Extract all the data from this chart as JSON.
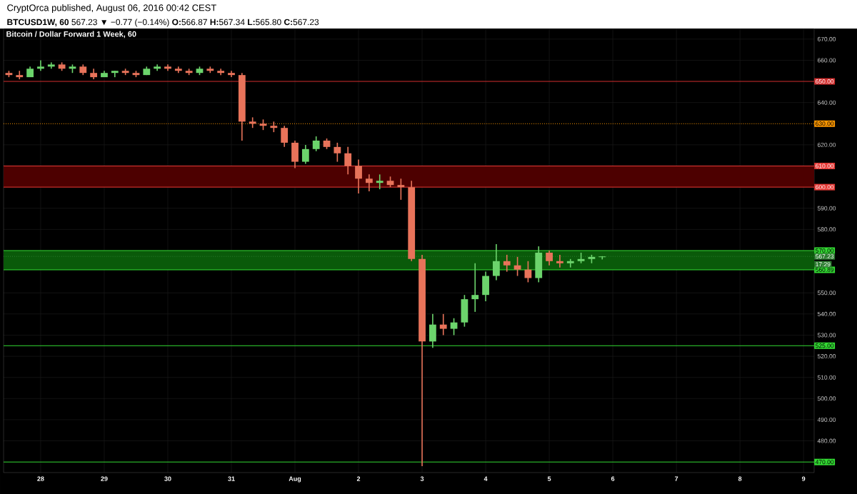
{
  "chart_data": {
    "type": "candlestick",
    "title": "Bitcoin / Dollar Forward 1 Week, 60",
    "subtitle": "**BTCUSD1W, 60** 567.23 ▼ −0.77 (−0.14%) **O:**566.87 **H:**567.34 **L:**565.80 **C:**567.23",
    "annotations": [
      "CryptOrca published, August 06, 2016 00:42 CEST",
      "17:29"
    ],
    "x": [
      "2016-07-27T12:00",
      "2016-07-27T16:00",
      "2016-07-27T20:00",
      "2016-07-28T00:00",
      "2016-07-28T04:00",
      "2016-07-28T08:00",
      "2016-07-28T12:00",
      "2016-07-28T16:00",
      "2016-07-28T20:00",
      "2016-07-29T00:00",
      "2016-07-29T04:00",
      "2016-07-29T08:00",
      "2016-07-29T12:00",
      "2016-07-29T16:00",
      "2016-07-29T20:00",
      "2016-07-30T00:00",
      "2016-07-30T04:00",
      "2016-07-30T08:00",
      "2016-07-30T12:00",
      "2016-07-30T16:00",
      "2016-07-30T20:00",
      "2016-07-31T00:00",
      "2016-07-31T04:00",
      "2016-07-31T08:00",
      "2016-07-31T12:00",
      "2016-07-31T16:00",
      "2016-07-31T20:00",
      "2016-08-01T00:00",
      "2016-08-01T04:00",
      "2016-08-01T08:00",
      "2016-08-01T12:00",
      "2016-08-01T16:00",
      "2016-08-01T20:00",
      "2016-08-02T00:00",
      "2016-08-02T04:00",
      "2016-08-02T08:00",
      "2016-08-02T12:00",
      "2016-08-02T16:00",
      "2016-08-02T20:00",
      "2016-08-03T00:00",
      "2016-08-03T04:00",
      "2016-08-03T08:00",
      "2016-08-03T12:00",
      "2016-08-03T16:00",
      "2016-08-03T20:00",
      "2016-08-04T00:00",
      "2016-08-04T04:00",
      "2016-08-04T08:00",
      "2016-08-04T12:00",
      "2016-08-04T16:00",
      "2016-08-04T20:00",
      "2016-08-05T00:00",
      "2016-08-05T04:00",
      "2016-08-05T08:00",
      "2016-08-05T12:00",
      "2016-08-05T16:00",
      "2016-08-05T20:00"
    ],
    "ohlc": [
      [
        654,
        655,
        652,
        653
      ],
      [
        653,
        655,
        651,
        652
      ],
      [
        652,
        657,
        652,
        656
      ],
      [
        656,
        660,
        655,
        657
      ],
      [
        657,
        659,
        656,
        658
      ],
      [
        658,
        659,
        655,
        656
      ],
      [
        656,
        658,
        654,
        657
      ],
      [
        657,
        658,
        653,
        654
      ],
      [
        654,
        656,
        651,
        652
      ],
      [
        652,
        655,
        652,
        654
      ],
      [
        654,
        655,
        652,
        655
      ],
      [
        655,
        656,
        653,
        654
      ],
      [
        654,
        655,
        652,
        653
      ],
      [
        653,
        657,
        653,
        656
      ],
      [
        656,
        658,
        655,
        657
      ],
      [
        657,
        658,
        655,
        656
      ],
      [
        656,
        657,
        654,
        655
      ],
      [
        655,
        656,
        653,
        654
      ],
      [
        654,
        657,
        653,
        656
      ],
      [
        656,
        657,
        654,
        655
      ],
      [
        655,
        656,
        653,
        654
      ],
      [
        654,
        655,
        652,
        653
      ],
      [
        653,
        654,
        622,
        631
      ],
      [
        631,
        633,
        628,
        630
      ],
      [
        630,
        632,
        627,
        629
      ],
      [
        629,
        631,
        626,
        628
      ],
      [
        628,
        629,
        619,
        621
      ],
      [
        621,
        622,
        609,
        612
      ],
      [
        612,
        620,
        611,
        618
      ],
      [
        618,
        624,
        617,
        622
      ],
      [
        622,
        623,
        618,
        619
      ],
      [
        619,
        621,
        612,
        616
      ],
      [
        616,
        619,
        606,
        610
      ],
      [
        610,
        613,
        597,
        604
      ],
      [
        604,
        606,
        598,
        602
      ],
      [
        602,
        606,
        599,
        603
      ],
      [
        603,
        605,
        600,
        601
      ],
      [
        601,
        604,
        594,
        600
      ],
      [
        600,
        603,
        565,
        566
      ],
      [
        566,
        568,
        468,
        527
      ],
      [
        527,
        540,
        524,
        535
      ],
      [
        535,
        540,
        530,
        533
      ],
      [
        533,
        538,
        530,
        536
      ],
      [
        536,
        549,
        534,
        547
      ],
      [
        547,
        564,
        541,
        549
      ],
      [
        549,
        560,
        546,
        558
      ],
      [
        558,
        573,
        556,
        565
      ],
      [
        565,
        568,
        560,
        563
      ],
      [
        563,
        567,
        558,
        561
      ],
      [
        561,
        565,
        555,
        557
      ],
      [
        557,
        572,
        555,
        569
      ],
      [
        569,
        570,
        563,
        565
      ],
      [
        565,
        568,
        562,
        564
      ],
      [
        564,
        566,
        562,
        565
      ],
      [
        565,
        569,
        564,
        566
      ],
      [
        566,
        568,
        564,
        567
      ],
      [
        566.87,
        567.34,
        565.8,
        567.23
      ]
    ],
    "colors": [
      "#e8735a",
      "#e8735a",
      "#6cd46c",
      "#6cd46c",
      "#6cd46c",
      "#e8735a",
      "#6cd46c",
      "#e8735a",
      "#e8735a",
      "#6cd46c",
      "#6cd46c",
      "#e8735a",
      "#e8735a",
      "#6cd46c",
      "#6cd46c",
      "#e8735a",
      "#e8735a",
      "#e8735a",
      "#6cd46c",
      "#e8735a",
      "#e8735a",
      "#e8735a",
      "#e8735a",
      "#e8735a",
      "#e8735a",
      "#e8735a",
      "#e8735a",
      "#e8735a",
      "#6cd46c",
      "#6cd46c",
      "#e8735a",
      "#e8735a",
      "#e8735a",
      "#e8735a",
      "#e8735a",
      "#6cd46c",
      "#e8735a",
      "#e8735a",
      "#e8735a",
      "#e8735a",
      "#6cd46c",
      "#e8735a",
      "#6cd46c",
      "#6cd46c",
      "#6cd46c",
      "#6cd46c",
      "#6cd46c",
      "#e8735a",
      "#e8735a",
      "#e8735a",
      "#6cd46c",
      "#e8735a",
      "#e8735a",
      "#6cd46c",
      "#6cd46c",
      "#6cd46c",
      "#6cd46c"
    ],
    "xlim": [
      "2016-07-27T10:00",
      "2016-08-09T04:00"
    ],
    "ylim": [
      465,
      675
    ],
    "xticks": [
      {
        "value": "2016-07-28",
        "label": "28"
      },
      {
        "value": "2016-07-29",
        "label": "29"
      },
      {
        "value": "2016-07-30",
        "label": "30"
      },
      {
        "value": "2016-07-31",
        "label": "31"
      },
      {
        "value": "2016-08-01",
        "label": "Aug"
      },
      {
        "value": "2016-08-02",
        "label": "2"
      },
      {
        "value": "2016-08-03",
        "label": "3"
      },
      {
        "value": "2016-08-04",
        "label": "4"
      },
      {
        "value": "2016-08-05",
        "label": "5"
      },
      {
        "value": "2016-08-06",
        "label": "6"
      },
      {
        "value": "2016-08-07",
        "label": "7"
      },
      {
        "value": "2016-08-08",
        "label": "8"
      },
      {
        "value": "2016-08-09",
        "label": "9"
      }
    ],
    "yticks": [
      {
        "value": 480,
        "label": "480.00"
      },
      {
        "value": 490,
        "label": "490.00"
      },
      {
        "value": 500,
        "label": "500.00"
      },
      {
        "value": 510,
        "label": "510.00"
      },
      {
        "value": 520,
        "label": "520.00"
      },
      {
        "value": 530,
        "label": "530.00"
      },
      {
        "value": 540,
        "label": "540.00"
      },
      {
        "value": 550,
        "label": "550.00"
      },
      {
        "value": 580,
        "label": "580.00"
      },
      {
        "value": 590,
        "label": "590.00"
      },
      {
        "value": 620,
        "label": "620.00"
      },
      {
        "value": 640,
        "label": "640.00"
      },
      {
        "value": 660,
        "label": "660.00"
      },
      {
        "value": 670,
        "label": "670.00"
      }
    ],
    "grid": true,
    "bands": [
      {
        "axis": "y",
        "from": 600,
        "to": 610,
        "color": "#4d0000"
      },
      {
        "axis": "y",
        "from": 560.89,
        "to": 570,
        "color": "#0a5a0a"
      }
    ],
    "ref_lines": [
      {
        "axis": "y",
        "value": 650,
        "label": "650.00",
        "color": "#d32f2f",
        "line_style": "solid"
      },
      {
        "axis": "y",
        "value": 630,
        "label": "630.00",
        "color": "#ff9800",
        "line_style": "dotted"
      },
      {
        "axis": "y",
        "value": 610,
        "label": "610.00",
        "color": "#e53935",
        "line_style": "solid"
      },
      {
        "axis": "y",
        "value": 600,
        "label": "600.00",
        "color": "#e53935",
        "line_style": "solid"
      },
      {
        "axis": "y",
        "value": 570,
        "label": "570.00",
        "color": "#33dd33",
        "line_style": "solid"
      },
      {
        "axis": "y",
        "value": 560.89,
        "label": "560.89",
        "color": "#33dd33",
        "line_style": "solid"
      },
      {
        "axis": "y",
        "value": 525,
        "label": "525.00",
        "color": "#33dd33",
        "line_style": "solid"
      },
      {
        "axis": "y",
        "value": 470,
        "label": "470.00",
        "color": "#33dd33",
        "line_style": "solid"
      },
      {
        "axis": "y",
        "value": 567.23,
        "label": "567.23",
        "color": "#2e7d32",
        "line_style": "dotted"
      }
    ]
  }
}
